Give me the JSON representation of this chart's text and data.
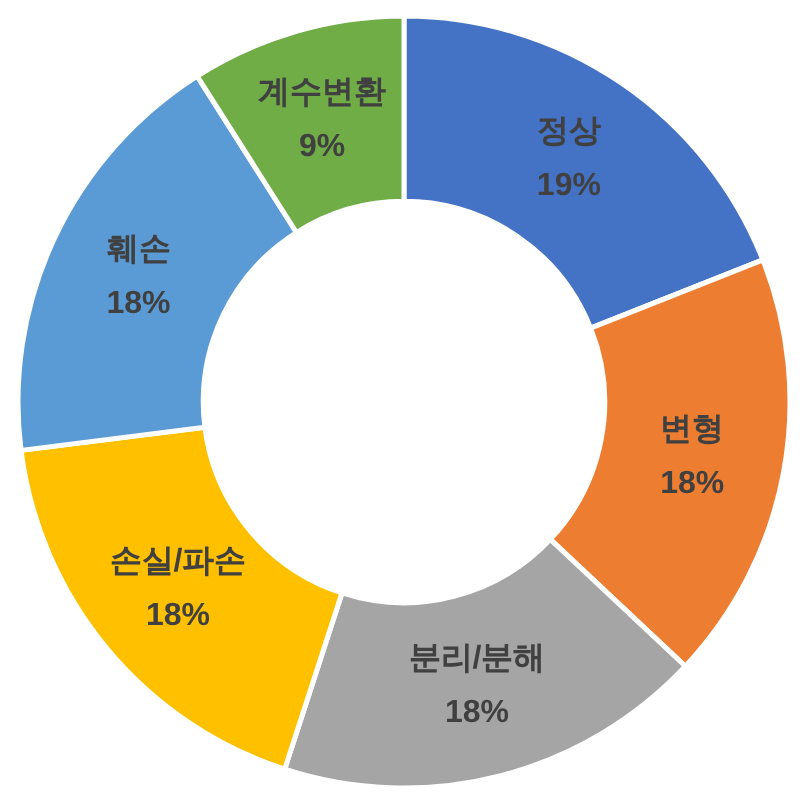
{
  "chart_data": {
    "type": "donut",
    "categories": [
      "정상",
      "변형",
      "분리/분해",
      "손실/파손",
      "훼손",
      "계수변환"
    ],
    "values": [
      19,
      18,
      18,
      18,
      18,
      9
    ],
    "colors": [
      "#4472c4",
      "#ed7d31",
      "#a5a5a5",
      "#ffc000",
      "#5b9bd5",
      "#70ad47"
    ],
    "value_labels": [
      "19%",
      "18%",
      "18%",
      "18%",
      "18%",
      "9%"
    ]
  }
}
